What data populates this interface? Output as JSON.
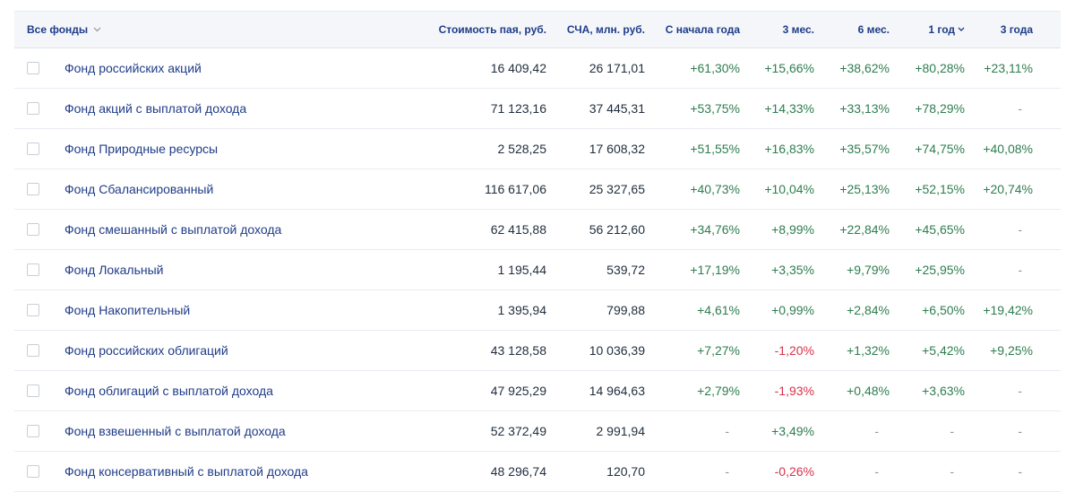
{
  "header": {
    "filter_label": "Все фонды",
    "price": "Стоимость пая, руб.",
    "nav": "СЧА, млн. руб.",
    "ytd": "С начала года",
    "m3": "3 мес.",
    "m6": "6 мес.",
    "y1": "1 год",
    "y3": "3 года",
    "sorted_column": "y1"
  },
  "colors": {
    "positive": "#2e7d4f",
    "negative": "#d8334a",
    "link": "#1f3c88",
    "neutral": "#8d97a5"
  },
  "icons": {
    "filter_dropdown": "chevron-down-icon",
    "sort_indicator": "chevron-down-icon"
  },
  "funds": [
    {
      "name": "Фонд российских акций",
      "price": "16 409,42",
      "nav": "26 171,01",
      "ytd": "+61,30%",
      "m3": "+15,66%",
      "m6": "+38,62%",
      "y1": "+80,28%",
      "y3": "+23,11%"
    },
    {
      "name": "Фонд акций с выплатой дохода",
      "price": "71 123,16",
      "nav": "37 445,31",
      "ytd": "+53,75%",
      "m3": "+14,33%",
      "m6": "+33,13%",
      "y1": "+78,29%",
      "y3": "-"
    },
    {
      "name": "Фонд Природные ресурсы",
      "price": "2 528,25",
      "nav": "17 608,32",
      "ytd": "+51,55%",
      "m3": "+16,83%",
      "m6": "+35,57%",
      "y1": "+74,75%",
      "y3": "+40,08%"
    },
    {
      "name": "Фонд Сбалансированный",
      "price": "116 617,06",
      "nav": "25 327,65",
      "ytd": "+40,73%",
      "m3": "+10,04%",
      "m6": "+25,13%",
      "y1": "+52,15%",
      "y3": "+20,74%"
    },
    {
      "name": "Фонд смешанный с выплатой дохода",
      "price": "62 415,88",
      "nav": "56 212,60",
      "ytd": "+34,76%",
      "m3": "+8,99%",
      "m6": "+22,84%",
      "y1": "+45,65%",
      "y3": "-"
    },
    {
      "name": "Фонд Локальный",
      "price": "1 195,44",
      "nav": "539,72",
      "ytd": "+17,19%",
      "m3": "+3,35%",
      "m6": "+9,79%",
      "y1": "+25,95%",
      "y3": "-"
    },
    {
      "name": "Фонд Накопительный",
      "price": "1 395,94",
      "nav": "799,88",
      "ytd": "+4,61%",
      "m3": "+0,99%",
      "m6": "+2,84%",
      "y1": "+6,50%",
      "y3": "+19,42%"
    },
    {
      "name": "Фонд российских облигаций",
      "price": "43 128,58",
      "nav": "10 036,39",
      "ytd": "+7,27%",
      "m3": "-1,20%",
      "m6": "+1,32%",
      "y1": "+5,42%",
      "y3": "+9,25%"
    },
    {
      "name": "Фонд облигаций с выплатой дохода",
      "price": "47 925,29",
      "nav": "14 964,63",
      "ytd": "+2,79%",
      "m3": "-1,93%",
      "m6": "+0,48%",
      "y1": "+3,63%",
      "y3": "-"
    },
    {
      "name": "Фонд взвешенный с выплатой дохода",
      "price": "52 372,49",
      "nav": "2 991,94",
      "ytd": "-",
      "m3": "+3,49%",
      "m6": "-",
      "y1": "-",
      "y3": "-"
    },
    {
      "name": "Фонд консервативный с выплатой дохода",
      "price": "48 296,74",
      "nav": "120,70",
      "ytd": "-",
      "m3": "-0,26%",
      "m6": "-",
      "y1": "-",
      "y3": "-"
    }
  ]
}
